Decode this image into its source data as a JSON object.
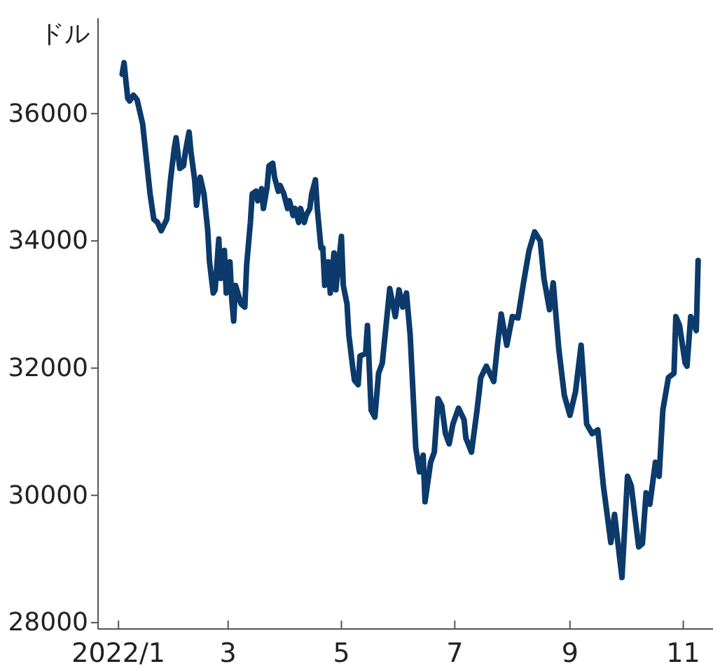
{
  "chart_data": {
    "type": "line",
    "ylabel": "ドル",
    "marker": "none",
    "line_style": "solid",
    "xlim": [
      "2021-12-21",
      "2022-11-17"
    ],
    "ylim": [
      27900,
      37500
    ],
    "xticks": [
      {
        "value": "2022-01-01",
        "label": "2022/1"
      },
      {
        "value": "2022-03-01",
        "label": "3"
      },
      {
        "value": "2022-05-01",
        "label": "5"
      },
      {
        "value": "2022-07-01",
        "label": "7"
      },
      {
        "value": "2022-09-01",
        "label": "9"
      },
      {
        "value": "2022-11-01",
        "label": "11"
      }
    ],
    "yticks": [
      28000,
      30000,
      32000,
      34000,
      36000
    ],
    "series": [
      {
        "color": "#0b3a6b",
        "x": [
          "2022-01-03",
          "2022-01-04",
          "2022-01-05",
          "2022-01-06",
          "2022-01-07",
          "2022-01-09",
          "2022-01-11",
          "2022-01-14",
          "2022-01-16",
          "2022-01-18",
          "2022-01-20",
          "2022-01-22",
          "2022-01-24",
          "2022-01-27",
          "2022-01-29",
          "2022-01-31",
          "2022-02-01",
          "2022-02-03",
          "2022-02-05",
          "2022-02-06",
          "2022-02-08",
          "2022-02-09",
          "2022-02-11",
          "2022-02-12",
          "2022-02-14",
          "2022-02-16",
          "2022-02-18",
          "2022-02-19",
          "2022-02-21",
          "2022-02-22",
          "2022-02-24",
          "2022-02-25",
          "2022-02-27",
          "2022-02-28",
          "2022-03-02",
          "2022-03-03",
          "2022-03-04",
          "2022-03-05",
          "2022-03-08",
          "2022-03-10",
          "2022-03-11",
          "2022-03-13",
          "2022-03-14",
          "2022-03-16",
          "2022-03-17",
          "2022-03-19",
          "2022-03-20",
          "2022-03-22",
          "2022-03-23",
          "2022-03-25",
          "2022-03-26",
          "2022-03-28",
          "2022-03-29",
          "2022-03-31",
          "2022-04-02",
          "2022-04-03",
          "2022-04-05",
          "2022-04-06",
          "2022-04-08",
          "2022-04-09",
          "2022-04-11",
          "2022-04-12",
          "2022-04-14",
          "2022-04-15",
          "2022-04-17",
          "2022-04-18",
          "2022-04-20",
          "2022-04-21",
          "2022-04-22",
          "2022-04-24",
          "2022-04-25",
          "2022-04-27",
          "2022-04-28",
          "2022-04-29",
          "2022-05-01",
          "2022-05-02",
          "2022-05-04",
          "2022-05-05",
          "2022-05-07",
          "2022-05-08",
          "2022-05-10",
          "2022-05-11",
          "2022-05-14",
          "2022-05-15",
          "2022-05-17",
          "2022-05-19",
          "2022-05-21",
          "2022-05-23",
          "2022-05-27",
          "2022-05-30",
          "2022-06-01",
          "2022-06-03",
          "2022-06-05",
          "2022-06-07",
          "2022-06-10",
          "2022-06-12",
          "2022-06-14",
          "2022-06-15",
          "2022-06-18",
          "2022-06-20",
          "2022-06-22",
          "2022-06-24",
          "2022-06-26",
          "2022-06-28",
          "2022-06-30",
          "2022-07-03",
          "2022-07-06",
          "2022-07-07",
          "2022-07-10",
          "2022-07-13",
          "2022-07-15",
          "2022-07-18",
          "2022-07-22",
          "2022-07-24",
          "2022-07-26",
          "2022-07-29",
          "2022-08-01",
          "2022-08-04",
          "2022-08-07",
          "2022-08-10",
          "2022-08-13",
          "2022-08-16",
          "2022-08-18",
          "2022-08-21",
          "2022-08-23",
          "2022-08-26",
          "2022-08-29",
          "2022-09-01",
          "2022-09-04",
          "2022-09-07",
          "2022-09-10",
          "2022-09-13",
          "2022-09-16",
          "2022-09-19",
          "2022-09-23",
          "2022-09-25",
          "2022-09-29",
          "2022-10-02",
          "2022-10-04",
          "2022-10-08",
          "2022-10-10",
          "2022-10-12",
          "2022-10-14",
          "2022-10-17",
          "2022-10-19",
          "2022-10-21",
          "2022-10-24",
          "2022-10-27",
          "2022-10-28",
          "2022-10-30",
          "2022-11-02",
          "2022-11-03",
          "2022-11-05",
          "2022-11-08",
          "2022-11-09"
        ],
        "values": [
          36620,
          36800,
          36510,
          36240,
          36200,
          36290,
          36220,
          35840,
          35290,
          34740,
          34340,
          34290,
          34160,
          34340,
          34960,
          35450,
          35620,
          35140,
          35180,
          35400,
          35710,
          35400,
          34960,
          34560,
          35000,
          34740,
          34180,
          33670,
          33180,
          33230,
          34030,
          33410,
          33850,
          33180,
          33670,
          33070,
          32740,
          33300,
          33010,
          32960,
          33630,
          34290,
          34740,
          34780,
          34630,
          34820,
          34510,
          34850,
          35180,
          35220,
          35000,
          34780,
          34870,
          34740,
          34510,
          34630,
          34400,
          34510,
          34290,
          34510,
          34290,
          34400,
          34510,
          34740,
          34960,
          34510,
          33890,
          33890,
          33300,
          33670,
          33180,
          33810,
          33230,
          33520,
          34070,
          33300,
          33010,
          32520,
          32030,
          31810,
          31740,
          32190,
          32230,
          32670,
          31340,
          31230,
          31920,
          32080,
          33250,
          32810,
          33230,
          32960,
          33180,
          32520,
          30750,
          30370,
          30630,
          29900,
          30520,
          30680,
          31520,
          31410,
          30970,
          30810,
          31120,
          31370,
          31190,
          30900,
          30680,
          31340,
          31850,
          32030,
          31790,
          32360,
          32850,
          32360,
          32810,
          32790,
          33340,
          33850,
          34140,
          34000,
          33410,
          32920,
          33340,
          32300,
          31570,
          31260,
          31630,
          32360,
          31120,
          30970,
          31030,
          30150,
          29260,
          29700,
          28710,
          30300,
          30150,
          29190,
          29240,
          30040,
          29860,
          30520,
          30300,
          31340,
          31850,
          31920,
          32810,
          32670,
          32080,
          32030,
          32810,
          32590,
          33690
        ]
      }
    ]
  }
}
